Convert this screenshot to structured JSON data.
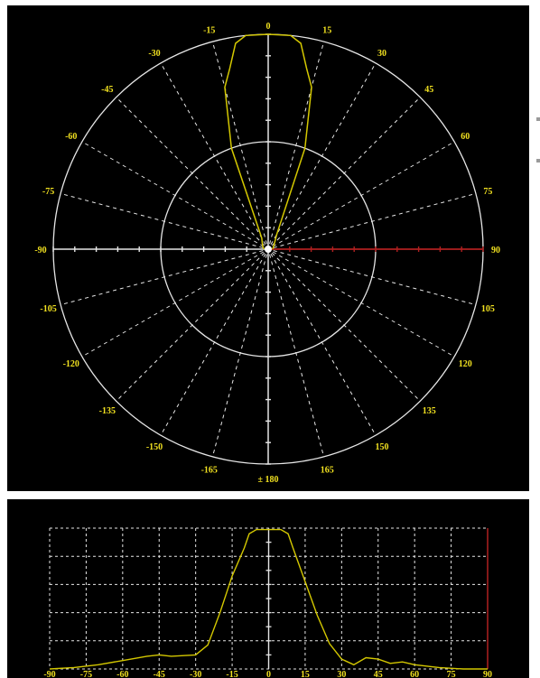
{
  "colors": {
    "background": "#000000",
    "grid": "#e6e6e6",
    "curve": "#d4c800",
    "labels": "#f0e020",
    "highlight": "#b02020"
  },
  "chart_data": [
    {
      "type": "polar",
      "angle_labels": [
        {
          "angle": 0,
          "text": "0"
        },
        {
          "angle": 15,
          "text": "15"
        },
        {
          "angle": 30,
          "text": "30"
        },
        {
          "angle": 45,
          "text": "45"
        },
        {
          "angle": 60,
          "text": "60"
        },
        {
          "angle": 75,
          "text": "75"
        },
        {
          "angle": 90,
          "text": "90"
        },
        {
          "angle": 105,
          "text": "105"
        },
        {
          "angle": 120,
          "text": "120"
        },
        {
          "angle": 135,
          "text": "135"
        },
        {
          "angle": 150,
          "text": "150"
        },
        {
          "angle": 165,
          "text": "165"
        },
        {
          "angle": 180,
          "text": "± 180"
        },
        {
          "angle": -165,
          "text": "-165"
        },
        {
          "angle": -150,
          "text": "-150"
        },
        {
          "angle": -135,
          "text": "-135"
        },
        {
          "angle": -120,
          "text": "-120"
        },
        {
          "angle": -105,
          "text": "-105"
        },
        {
          "angle": -90,
          "text": "-90"
        },
        {
          "angle": -75,
          "text": "-75"
        },
        {
          "angle": -60,
          "text": "-60"
        },
        {
          "angle": -45,
          "text": "-45"
        },
        {
          "angle": -30,
          "text": "-30"
        },
        {
          "angle": -15,
          "text": "-15"
        }
      ],
      "radial_max": 1.0,
      "rings": [
        0.5,
        1.0
      ],
      "grid": true,
      "series": [
        {
          "values": [
            {
              "angle": -90,
              "r": 0.02
            },
            {
              "angle": -60,
              "r": 0.03
            },
            {
              "angle": -30,
              "r": 0.06
            },
            {
              "angle": -20,
              "r": 0.5
            },
            {
              "angle": -15,
              "r": 0.78
            },
            {
              "angle": -12,
              "r": 0.86
            },
            {
              "angle": -9,
              "r": 0.97
            },
            {
              "angle": -6,
              "r": 1.0
            },
            {
              "angle": 0,
              "r": 1.0
            },
            {
              "angle": 6,
              "r": 1.0
            },
            {
              "angle": 9,
              "r": 0.97
            },
            {
              "angle": 12,
              "r": 0.86
            },
            {
              "angle": 15,
              "r": 0.78
            },
            {
              "angle": 20,
              "r": 0.5
            },
            {
              "angle": 30,
              "r": 0.08
            },
            {
              "angle": 60,
              "r": 0.03
            },
            {
              "angle": 90,
              "r": 0.02
            }
          ]
        }
      ]
    },
    {
      "type": "line",
      "x_ticks": [
        "-90",
        "-75",
        "-60",
        "-45",
        "-30",
        "-15",
        "0",
        "15",
        "30",
        "45",
        "60",
        "75",
        "90"
      ],
      "xlim": [
        -90,
        90
      ],
      "ylim": [
        0,
        1
      ],
      "grid": true,
      "series": [
        {
          "x": [
            -90,
            -80,
            -70,
            -60,
            -50,
            -45,
            -40,
            -30,
            -25,
            -20,
            -15,
            -10,
            -8,
            -5,
            0,
            5,
            8,
            10,
            15,
            20,
            25,
            30,
            35,
            40,
            45,
            50,
            55,
            60,
            70,
            80,
            90
          ],
          "y": [
            0.0,
            0.01,
            0.03,
            0.06,
            0.09,
            0.1,
            0.09,
            0.1,
            0.17,
            0.4,
            0.66,
            0.86,
            0.96,
            0.99,
            0.99,
            0.99,
            0.96,
            0.86,
            0.62,
            0.38,
            0.18,
            0.07,
            0.03,
            0.08,
            0.07,
            0.04,
            0.05,
            0.03,
            0.01,
            0.0,
            0.0
          ]
        }
      ]
    }
  ]
}
